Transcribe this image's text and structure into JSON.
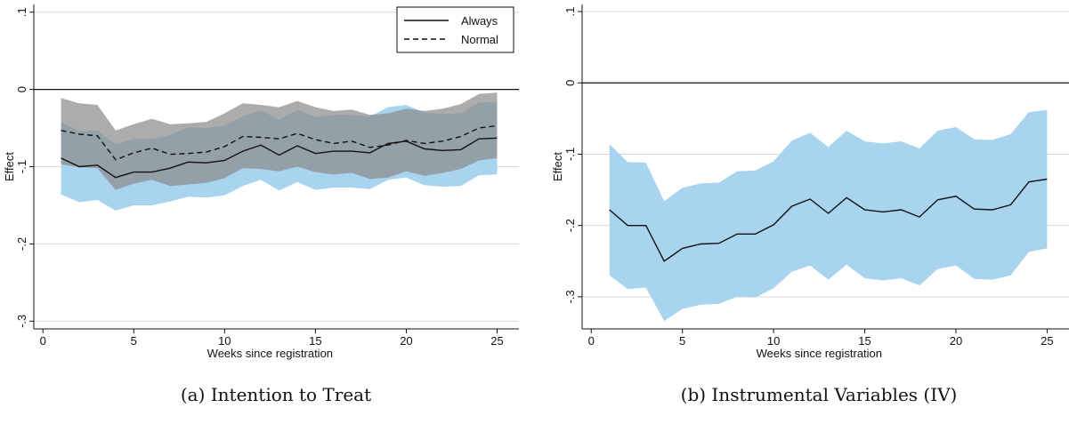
{
  "figure": {
    "panels": [
      {
        "caption": "(a) Intention to Treat"
      },
      {
        "caption": "(b) Instrumental Variables (IV)"
      }
    ]
  },
  "chart_data": [
    {
      "type": "line",
      "title": "",
      "xlabel": "Weeks since registration",
      "ylabel": "Effect",
      "xlim": [
        -0.5,
        26.2
      ],
      "ylim": [
        -0.31,
        0.11
      ],
      "x_ticks": [
        0,
        5,
        10,
        15,
        20,
        25
      ],
      "x_tick_labels": [
        "0",
        "5",
        "10",
        "15",
        "20",
        "25"
      ],
      "y_ticks": [
        0.1,
        0,
        -0.1,
        -0.2,
        -0.3
      ],
      "y_tick_labels": [
        ".1",
        "0",
        "-.1",
        "-.2",
        "-.3"
      ],
      "grid": "horizontal",
      "reference_line": 0,
      "legend": {
        "position": "top-right",
        "entries": [
          "Always",
          "Normal"
        ]
      },
      "x": [
        1,
        2,
        3,
        4,
        5,
        6,
        7,
        8,
        9,
        10,
        11,
        12,
        13,
        14,
        15,
        16,
        17,
        18,
        19,
        20,
        21,
        22,
        23,
        24,
        25
      ],
      "series": [
        {
          "name": "Always",
          "style": "solid",
          "color": "#111111",
          "values": [
            -0.089,
            -0.1,
            -0.098,
            -0.114,
            -0.107,
            -0.107,
            -0.102,
            -0.094,
            -0.095,
            -0.092,
            -0.08,
            -0.072,
            -0.085,
            -0.073,
            -0.083,
            -0.08,
            -0.08,
            -0.082,
            -0.07,
            -0.067,
            -0.077,
            -0.079,
            -0.078,
            -0.064,
            -0.063
          ],
          "ci_lower": [
            -0.136,
            -0.146,
            -0.143,
            -0.157,
            -0.15,
            -0.15,
            -0.145,
            -0.139,
            -0.14,
            -0.137,
            -0.125,
            -0.117,
            -0.131,
            -0.12,
            -0.13,
            -0.127,
            -0.127,
            -0.129,
            -0.117,
            -0.114,
            -0.124,
            -0.126,
            -0.125,
            -0.111,
            -0.11
          ],
          "ci_upper": [
            -0.042,
            -0.054,
            -0.053,
            -0.071,
            -0.064,
            -0.064,
            -0.059,
            -0.049,
            -0.05,
            -0.047,
            -0.035,
            -0.027,
            -0.039,
            -0.026,
            -0.036,
            -0.033,
            -0.033,
            -0.035,
            -0.023,
            -0.02,
            -0.03,
            -0.032,
            -0.031,
            -0.017,
            -0.016
          ],
          "band_color": "#a8d4ef"
        },
        {
          "name": "Normal",
          "style": "dashed",
          "color": "#111111",
          "values": [
            -0.053,
            -0.058,
            -0.06,
            -0.091,
            -0.082,
            -0.076,
            -0.084,
            -0.083,
            -0.081,
            -0.074,
            -0.061,
            -0.062,
            -0.064,
            -0.057,
            -0.065,
            -0.07,
            -0.067,
            -0.075,
            -0.072,
            -0.066,
            -0.07,
            -0.067,
            -0.061,
            -0.05,
            -0.047
          ],
          "ci_lower": [
            -0.097,
            -0.101,
            -0.102,
            -0.13,
            -0.122,
            -0.117,
            -0.125,
            -0.123,
            -0.121,
            -0.115,
            -0.102,
            -0.103,
            -0.106,
            -0.1,
            -0.107,
            -0.11,
            -0.108,
            -0.116,
            -0.114,
            -0.106,
            -0.112,
            -0.108,
            -0.103,
            -0.092,
            -0.089
          ],
          "ci_upper": [
            -0.011,
            -0.018,
            -0.02,
            -0.053,
            -0.045,
            -0.038,
            -0.045,
            -0.044,
            -0.042,
            -0.031,
            -0.018,
            -0.02,
            -0.023,
            -0.015,
            -0.023,
            -0.028,
            -0.026,
            -0.033,
            -0.031,
            -0.025,
            -0.028,
            -0.025,
            -0.019,
            -0.006,
            -0.004
          ],
          "band_color": "#8c8c8c"
        }
      ]
    },
    {
      "type": "line",
      "title": "",
      "xlabel": "Weeks since registration",
      "ylabel": "Effect",
      "xlim": [
        -0.5,
        26.2
      ],
      "ylim": [
        -0.345,
        0.11
      ],
      "x_ticks": [
        0,
        5,
        10,
        15,
        20,
        25
      ],
      "x_tick_labels": [
        "0",
        "5",
        "10",
        "15",
        "20",
        "25"
      ],
      "y_ticks": [
        0.1,
        0,
        -0.1,
        -0.2,
        -0.3
      ],
      "y_tick_labels": [
        ".1",
        "0",
        "-.1",
        "-.2",
        "-.3"
      ],
      "grid": "horizontal",
      "reference_line": 0,
      "x": [
        1,
        2,
        3,
        4,
        5,
        6,
        7,
        8,
        9,
        10,
        11,
        12,
        13,
        14,
        15,
        16,
        17,
        18,
        19,
        20,
        21,
        22,
        23,
        24,
        25
      ],
      "series": [
        {
          "style": "solid",
          "color": "#111111",
          "values": [
            -0.178,
            -0.2,
            -0.2,
            -0.25,
            -0.232,
            -0.226,
            -0.225,
            -0.212,
            -0.212,
            -0.199,
            -0.173,
            -0.163,
            -0.183,
            -0.161,
            -0.178,
            -0.181,
            -0.178,
            -0.188,
            -0.164,
            -0.159,
            -0.177,
            -0.178,
            -0.171,
            -0.139,
            -0.135
          ],
          "ci_lower": [
            -0.27,
            -0.289,
            -0.287,
            -0.334,
            -0.317,
            -0.311,
            -0.31,
            -0.3,
            -0.301,
            -0.288,
            -0.265,
            -0.256,
            -0.276,
            -0.255,
            -0.274,
            -0.277,
            -0.274,
            -0.284,
            -0.261,
            -0.256,
            -0.275,
            -0.276,
            -0.27,
            -0.237,
            -0.232
          ],
          "ci_upper": [
            -0.086,
            -0.111,
            -0.112,
            -0.166,
            -0.147,
            -0.141,
            -0.14,
            -0.124,
            -0.123,
            -0.11,
            -0.081,
            -0.07,
            -0.09,
            -0.067,
            -0.082,
            -0.085,
            -0.082,
            -0.092,
            -0.067,
            -0.062,
            -0.079,
            -0.08,
            -0.072,
            -0.041,
            -0.038
          ],
          "band_color": "#a8d4ef"
        }
      ]
    }
  ]
}
